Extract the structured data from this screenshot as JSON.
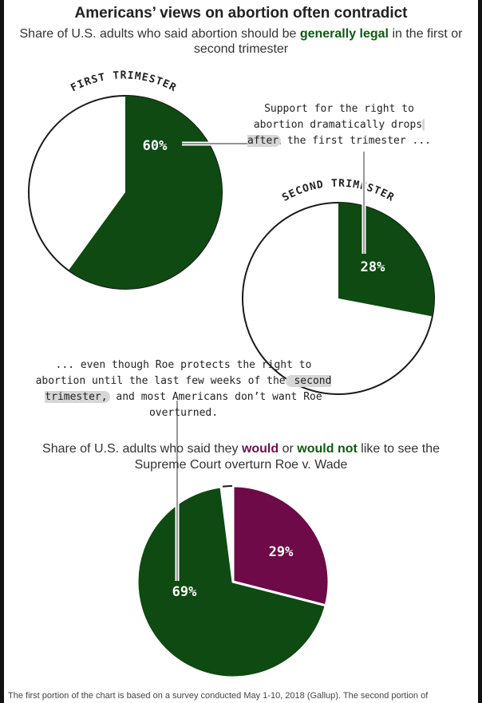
{
  "title": "Americans’ views on abortion often contradict",
  "subtitle": {
    "pre": "Share of U.S. adults who said abortion should be ",
    "highlight": "generally legal",
    "post": " in the first or second trimester"
  },
  "callouts": {
    "first": {
      "pre": "Support for the right to abortion dramatically drops",
      "mark": " after",
      "post": " the first trimester ..."
    },
    "second": {
      "pre": "... even though Roe protects the right to abortion until the last few weeks of the",
      "mark": " second trimester,",
      "post": " and most Americans don’t want Roe overturned."
    }
  },
  "section2": {
    "pre": "Share of U.S. adults who said they ",
    "would": "would",
    "mid": " or ",
    "would_not": "would not",
    "post": " like to see the Supreme Court overturn Roe v. Wade"
  },
  "footnote": "The first portion of the chart is based on a survey conducted May 1-10, 2018 (Gallup). The second portion of",
  "colors": {
    "green": "#0e4a12",
    "purple": "#6e0a48",
    "outline": "#1a1a1a",
    "connector": "#555555"
  },
  "chart_data": [
    {
      "type": "pie",
      "title": "FIRST TRIMESTER",
      "slices": [
        {
          "label": "60%",
          "value": 60,
          "color": "#0e4a12"
        }
      ]
    },
    {
      "type": "pie",
      "title": "SECOND TRIMESTER",
      "slices": [
        {
          "label": "28%",
          "value": 28,
          "color": "#0e4a12"
        }
      ]
    },
    {
      "type": "pie",
      "title": "",
      "slices": [
        {
          "label": "29%",
          "value": 29,
          "color": "#6e0a48"
        },
        {
          "label": "69%",
          "value": 69,
          "color": "#0e4a12"
        }
      ]
    }
  ]
}
